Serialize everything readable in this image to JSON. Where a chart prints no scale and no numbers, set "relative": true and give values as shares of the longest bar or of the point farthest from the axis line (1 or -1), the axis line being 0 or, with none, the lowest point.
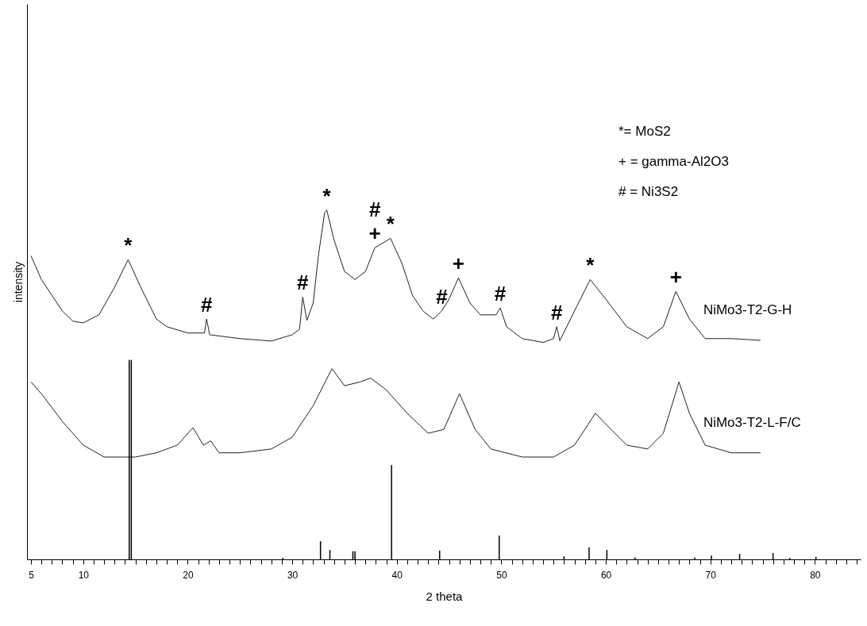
{
  "chart_data": {
    "type": "line",
    "xlabel": "2 theta",
    "ylabel": "intensity",
    "relative": true,
    "xlim": [
      5,
      84
    ],
    "xticks": [
      5,
      {
        "value": 6,
        "label": null
      },
      {
        "value": 7,
        "label": null
      },
      {
        "value": 8,
        "label": null
      },
      {
        "value": 9,
        "label": null
      },
      10,
      {
        "value": 11,
        "label": null
      },
      {
        "value": 12,
        "label": null
      },
      {
        "value": 13,
        "label": null
      },
      {
        "value": 14,
        "label": null
      },
      {
        "value": 15,
        "label": null
      },
      {
        "value": 16,
        "label": null
      },
      {
        "value": 17,
        "label": null
      },
      {
        "value": 18,
        "label": null
      },
      {
        "value": 19,
        "label": null
      },
      20,
      {
        "value": 21,
        "label": null
      },
      {
        "value": 22,
        "label": null
      },
      {
        "value": 23,
        "label": null
      },
      {
        "value": 24,
        "label": null
      },
      {
        "value": 25,
        "label": null
      },
      {
        "value": 26,
        "label": null
      },
      {
        "value": 27,
        "label": null
      },
      {
        "value": 28,
        "label": null
      },
      {
        "value": 29,
        "label": null
      },
      30,
      {
        "value": 31,
        "label": null
      },
      {
        "value": 32,
        "label": null
      },
      {
        "value": 33,
        "label": null
      },
      {
        "value": 34,
        "label": null
      },
      {
        "value": 35,
        "label": null
      },
      {
        "value": 36,
        "label": null
      },
      {
        "value": 37,
        "label": null
      },
      {
        "value": 38,
        "label": null
      },
      {
        "value": 39,
        "label": null
      },
      40,
      {
        "value": 41,
        "label": null
      },
      {
        "value": 42,
        "label": null
      },
      {
        "value": 43,
        "label": null
      },
      {
        "value": 44,
        "label": null
      },
      {
        "value": 45,
        "label": null
      },
      {
        "value": 46,
        "label": null
      },
      {
        "value": 47,
        "label": null
      },
      {
        "value": 48,
        "label": null
      },
      {
        "value": 49,
        "label": null
      },
      50,
      {
        "value": 51,
        "label": null
      },
      {
        "value": 52,
        "label": null
      },
      {
        "value": 53,
        "label": null
      },
      {
        "value": 54,
        "label": null
      },
      {
        "value": 55,
        "label": null
      },
      {
        "value": 56,
        "label": null
      },
      {
        "value": 57,
        "label": null
      },
      {
        "value": 58,
        "label": null
      },
      {
        "value": 59,
        "label": null
      },
      60,
      {
        "value": 61,
        "label": null
      },
      {
        "value": 62,
        "label": null
      },
      {
        "value": 63,
        "label": null
      },
      {
        "value": 64,
        "label": null
      },
      {
        "value": 65,
        "label": null
      },
      {
        "value": 66,
        "label": null
      },
      {
        "value": 67,
        "label": null
      },
      {
        "value": 68,
        "label": null
      },
      {
        "value": 69,
        "label": null
      },
      70,
      {
        "value": 71,
        "label": null
      },
      {
        "value": 72,
        "label": null
      },
      {
        "value": 73,
        "label": null
      },
      {
        "value": 74,
        "label": null
      },
      {
        "value": 75,
        "label": null
      },
      {
        "value": 76,
        "label": null
      },
      {
        "value": 77,
        "label": null
      },
      {
        "value": 78,
        "label": null
      },
      {
        "value": 79,
        "label": null
      },
      80,
      {
        "value": 81,
        "label": null
      },
      {
        "value": 82,
        "label": null
      },
      {
        "value": 83,
        "label": null
      },
      {
        "value": 84,
        "label": null
      }
    ],
    "series": [
      {
        "name": "NiMo3-T2-G-H",
        "color": "#222222",
        "x": [
          5,
          6,
          8,
          9,
          10,
          11.5,
          13,
          14.3,
          15.5,
          17,
          18,
          20,
          21.6,
          21.8,
          22.1,
          25,
          28,
          30,
          30.7,
          31,
          31.4,
          32,
          32.5,
          33.1,
          33.3,
          34,
          35,
          36,
          37,
          37.9,
          39.4,
          40.5,
          41.5,
          42.5,
          43.5,
          44.3,
          45,
          45.9,
          47,
          48,
          49.5,
          49.9,
          50.5,
          52,
          54,
          55,
          55.3,
          55.6,
          57,
          58.5,
          60,
          62,
          64,
          65.5,
          66.7,
          68,
          69.5,
          72,
          74.8
        ],
        "values": [
          0.869,
          0.801,
          0.711,
          0.682,
          0.677,
          0.7,
          0.779,
          0.858,
          0.779,
          0.688,
          0.666,
          0.648,
          0.648,
          0.688,
          0.643,
          0.632,
          0.625,
          0.643,
          0.659,
          0.751,
          0.684,
          0.734,
          0.869,
          0.993,
          1,
          0.914,
          0.824,
          0.801,
          0.824,
          0.892,
          0.919,
          0.847,
          0.756,
          0.711,
          0.688,
          0.711,
          0.745,
          0.806,
          0.734,
          0.7,
          0.7,
          0.72,
          0.666,
          0.632,
          0.621,
          0.632,
          0.666,
          0.626,
          0.711,
          0.801,
          0.745,
          0.666,
          0.632,
          0.666,
          0.767,
          0.688,
          0.632,
          0.632,
          0.627
        ]
      },
      {
        "name": "NiMo3-T2-L-F/C",
        "color": "#222222",
        "x": [
          5,
          6,
          8,
          10,
          12,
          15,
          17,
          19,
          20.5,
          21.5,
          22.2,
          23,
          25,
          28,
          30,
          32,
          33.8,
          35,
          36.5,
          37.5,
          39,
          41,
          43,
          44.5,
          46,
          47.5,
          49,
          52,
          55,
          57,
          59,
          60.5,
          62,
          64,
          65.5,
          67,
          68,
          69.5,
          72,
          74.8
        ],
        "values": [
          0.508,
          0.474,
          0.395,
          0.327,
          0.293,
          0.293,
          0.305,
          0.327,
          0.377,
          0.327,
          0.339,
          0.305,
          0.305,
          0.316,
          0.35,
          0.44,
          0.546,
          0.497,
          0.508,
          0.519,
          0.485,
          0.418,
          0.361,
          0.372,
          0.474,
          0.372,
          0.316,
          0.293,
          0.293,
          0.327,
          0.418,
          0.372,
          0.327,
          0.316,
          0.361,
          0.508,
          0.418,
          0.327,
          0.305,
          0.305
        ]
      },
      {
        "type": "bar",
        "color": "#000000",
        "x": [
          14.4,
          14.6,
          29.1,
          32.7,
          33.6,
          35.8,
          36,
          39.5,
          44.1,
          49.8,
          56,
          58.4,
          60.1,
          62.8,
          66.4,
          68.5,
          70.1,
          72.8,
          76,
          77.6,
          80.1
        ],
        "values": [
          0.571,
          0.571,
          0.004,
          0.052,
          0.027,
          0.023,
          0.023,
          0.27,
          0.025,
          0.068,
          0.009,
          0.034,
          0.027,
          0.005,
          null,
          0.005,
          0.011,
          0.016,
          0.018,
          0.004,
          0.007
        ]
      }
    ],
    "annotations": [
      "*= MoS2",
      "+ = gamma-Al2O3",
      "# = Ni3S2",
      {
        "text": "*",
        "x": 14.3,
        "y": 0.858
      },
      {
        "text": "#",
        "x": 21.8,
        "y": 0.688
      },
      {
        "text": "#",
        "x": 31,
        "y": 0.751
      },
      {
        "text": "*",
        "x": 33.3,
        "y": 1
      },
      {
        "text": "+",
        "x": 37.9,
        "y": 0.892
      },
      {
        "text": "#",
        "x": 37.9,
        "y": 0.892
      },
      {
        "text": "*",
        "x": 39.4,
        "y": 0.919
      },
      {
        "text": "#",
        "x": 44.3,
        "y": 0.711
      },
      {
        "text": "+",
        "x": 45.9,
        "y": 0.806
      },
      {
        "text": "#",
        "x": 49.9,
        "y": 0.72
      },
      {
        "text": "#",
        "x": 55.3,
        "y": 0.666
      },
      {
        "text": "*",
        "x": 58.5,
        "y": 0.801
      },
      {
        "text": "+",
        "x": 66.7,
        "y": 0.767
      }
    ]
  }
}
